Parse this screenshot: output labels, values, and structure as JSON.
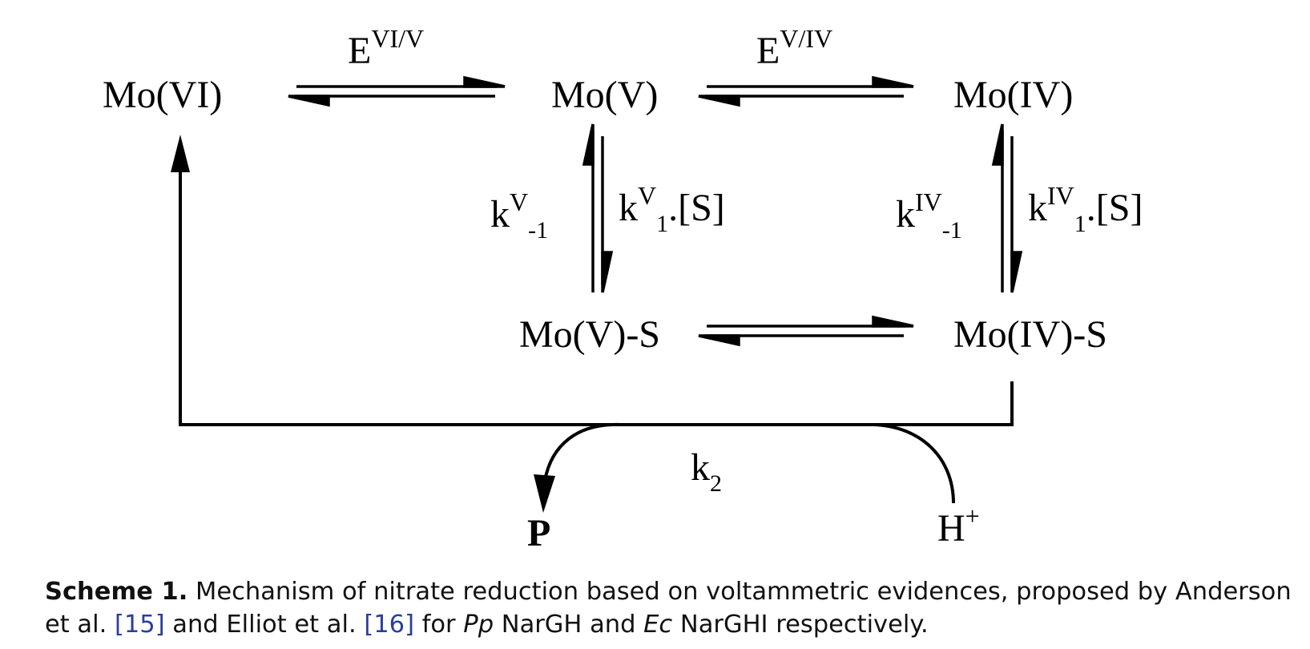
{
  "species": {
    "mo_vi": "Mo(VI)",
    "mo_v": "Mo(V)",
    "mo_iv": "Mo(IV)",
    "mo_v_s": "Mo(V)-S",
    "mo_iv_s": "Mo(IV)-S",
    "product": "P",
    "proton_base": "H",
    "proton_charge": "+"
  },
  "rates": {
    "e_vi_v": {
      "base": "E",
      "sup": "VI/V"
    },
    "e_v_iv": {
      "base": "E",
      "sup": "V/IV"
    },
    "kv_minus1": {
      "base": "k",
      "sup": "V",
      "sub": "-1"
    },
    "kv_1": {
      "base": "k",
      "sup": "V",
      "sub": "1",
      "suffix": ".[S]"
    },
    "kiv_minus1": {
      "base": "k",
      "sup": "IV",
      "sub": "-1"
    },
    "kiv_1": {
      "base": "k",
      "sup": "IV",
      "sub": "1",
      "suffix": ".[S]"
    },
    "k2": {
      "base": "k",
      "sub": "2"
    }
  },
  "caption": {
    "label": "Scheme 1.",
    "text_1": " Mechanism of nitrate reduction based on voltammetric evidences, proposed by Anderson et al. ",
    "ref_1": "[15]",
    "text_2": " and Elliot et al. ",
    "ref_2": "[16]",
    "text_3": " for ",
    "italic_1": "Pp",
    "text_4": " NarGH and ",
    "italic_2": "Ec",
    "text_5": " NarGHI respectively."
  },
  "colors": {
    "ink": "#000000",
    "reference_link": "#2a3e9c"
  }
}
